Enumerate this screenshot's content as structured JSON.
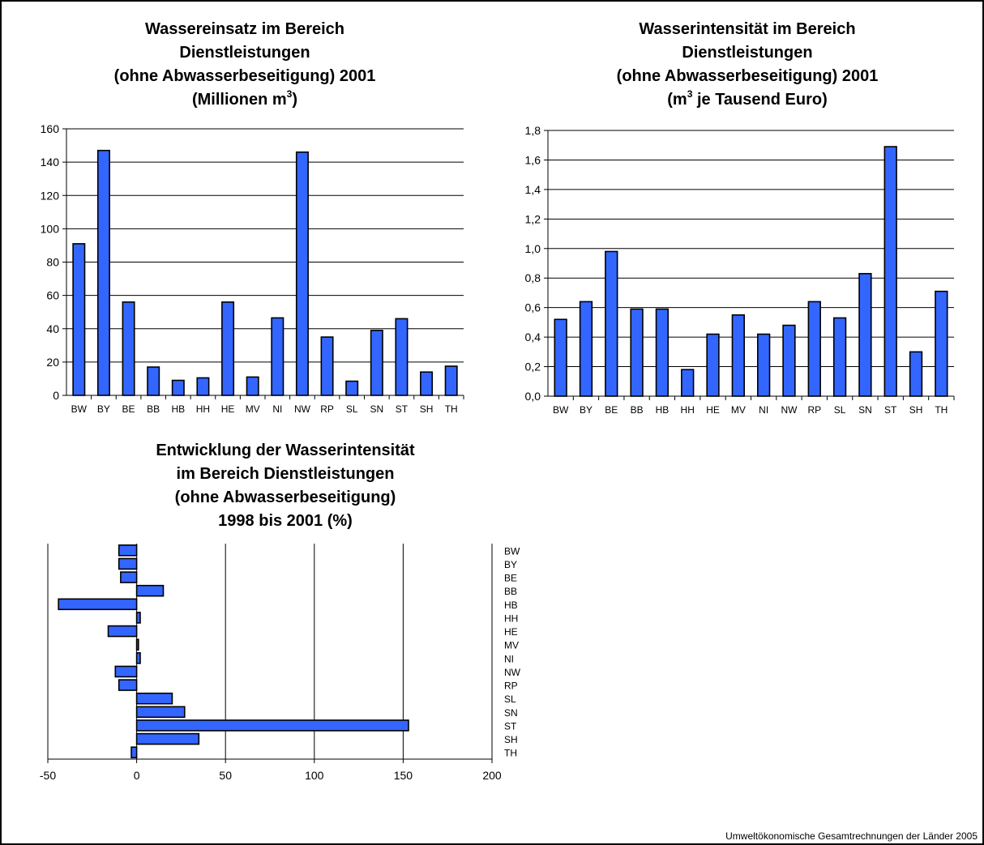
{
  "chart_data": [
    {
      "type": "bar",
      "title_lines": [
        "Wassereinsatz im Bereich",
        "Dienstleistungen",
        "(ohne Abwasserbeseitigung) 2001"
      ],
      "title_unit": {
        "pre": "(Millionen m",
        "sup": "3",
        "post": ")"
      },
      "categories": [
        "BW",
        "BY",
        "BE",
        "BB",
        "HB",
        "HH",
        "HE",
        "MV",
        "NI",
        "NW",
        "RP",
        "SL",
        "SN",
        "ST",
        "SH",
        "TH"
      ],
      "values": [
        91,
        147,
        56,
        17,
        9,
        10.5,
        56,
        11,
        46.5,
        146,
        35,
        8.5,
        39,
        46,
        14,
        17.5
      ],
      "ylim": [
        0,
        160
      ],
      "yticks": [
        "0",
        "20",
        "40",
        "60",
        "80",
        "100",
        "120",
        "140",
        "160"
      ],
      "bar_color": "#3366ff",
      "grid": true
    },
    {
      "type": "bar",
      "title_lines": [
        "Wasserintensität im Bereich",
        "Dienstleistungen",
        "(ohne Abwasserbeseitigung) 2001"
      ],
      "title_unit": {
        "pre": "(m",
        "sup": "3",
        "post": " je Tausend Euro)"
      },
      "categories": [
        "BW",
        "BY",
        "BE",
        "BB",
        "HB",
        "HH",
        "HE",
        "MV",
        "NI",
        "NW",
        "RP",
        "SL",
        "SN",
        "ST",
        "SH",
        "TH"
      ],
      "values": [
        0.52,
        0.64,
        0.98,
        0.59,
        0.59,
        0.18,
        0.42,
        0.55,
        0.42,
        0.48,
        0.64,
        0.53,
        0.83,
        1.69,
        0.3,
        0.71
      ],
      "ylim": [
        0,
        1.8
      ],
      "yticks": [
        "0,0",
        "0,2",
        "0,4",
        "0,6",
        "0,8",
        "1,0",
        "1,2",
        "1,4",
        "1,6",
        "1,8"
      ],
      "bar_color": "#3366ff",
      "grid": true
    },
    {
      "type": "bar",
      "orientation": "horizontal",
      "title_lines": [
        "Entwicklung der Wasserintensität",
        "im Bereich Dienstleistungen",
        "(ohne Abwasserbeseitigung)",
        "1998 bis 2001 (%)"
      ],
      "categories": [
        "BW",
        "BY",
        "BE",
        "BB",
        "HB",
        "HH",
        "HE",
        "MV",
        "NI",
        "NW",
        "RP",
        "SL",
        "SN",
        "ST",
        "SH",
        "TH"
      ],
      "values": [
        -10,
        -10,
        -9,
        15,
        -44,
        2,
        -16,
        1,
        2,
        -12,
        -10,
        20,
        27,
        153,
        35,
        -3
      ],
      "xlim": [
        -50,
        200
      ],
      "xticks": [
        "-50",
        "0",
        "50",
        "100",
        "150",
        "200"
      ],
      "bar_color": "#3366ff",
      "grid": true
    }
  ],
  "footer": "Umweltökonomische Gesamtrechnungen der Länder 2005"
}
